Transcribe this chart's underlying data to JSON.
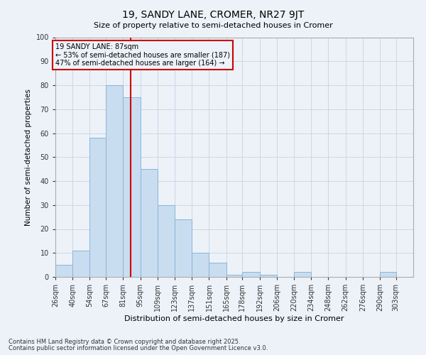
{
  "title": "19, SANDY LANE, CROMER, NR27 9JT",
  "subtitle": "Size of property relative to semi-detached houses in Cromer",
  "xlabel": "Distribution of semi-detached houses by size in Cromer",
  "ylabel": "Number of semi-detached properties",
  "property_size": 87,
  "property_label": "19 SANDY LANE: 87sqm",
  "annotation_line1": "← 53% of semi-detached houses are smaller (187)",
  "annotation_line2": "47% of semi-detached houses are larger (164) →",
  "bar_color": "#c9ddf0",
  "bar_edge_color": "#8ab4d8",
  "vline_color": "#cc0000",
  "annotation_box_color": "#cc0000",
  "grid_color": "#c8d8e8",
  "bg_color": "#edf2f8",
  "categories": [
    "26sqm",
    "40sqm",
    "54sqm",
    "67sqm",
    "81sqm",
    "95sqm",
    "109sqm",
    "123sqm",
    "137sqm",
    "151sqm",
    "165sqm",
    "178sqm",
    "192sqm",
    "206sqm",
    "220sqm",
    "234sqm",
    "248sqm",
    "262sqm",
    "276sqm",
    "290sqm",
    "303sqm"
  ],
  "bin_edges": [
    26,
    40,
    54,
    67,
    81,
    95,
    109,
    123,
    137,
    151,
    165,
    178,
    192,
    206,
    220,
    234,
    248,
    262,
    276,
    290,
    303,
    317
  ],
  "values": [
    5,
    11,
    58,
    80,
    75,
    45,
    30,
    24,
    10,
    6,
    1,
    2,
    1,
    0,
    2,
    0,
    0,
    0,
    0,
    2,
    0
  ],
  "ylim": [
    0,
    100
  ],
  "yticks": [
    0,
    10,
    20,
    30,
    40,
    50,
    60,
    70,
    80,
    90,
    100
  ],
  "footnote1": "Contains HM Land Registry data © Crown copyright and database right 2025.",
  "footnote2": "Contains public sector information licensed under the Open Government Licence v3.0."
}
